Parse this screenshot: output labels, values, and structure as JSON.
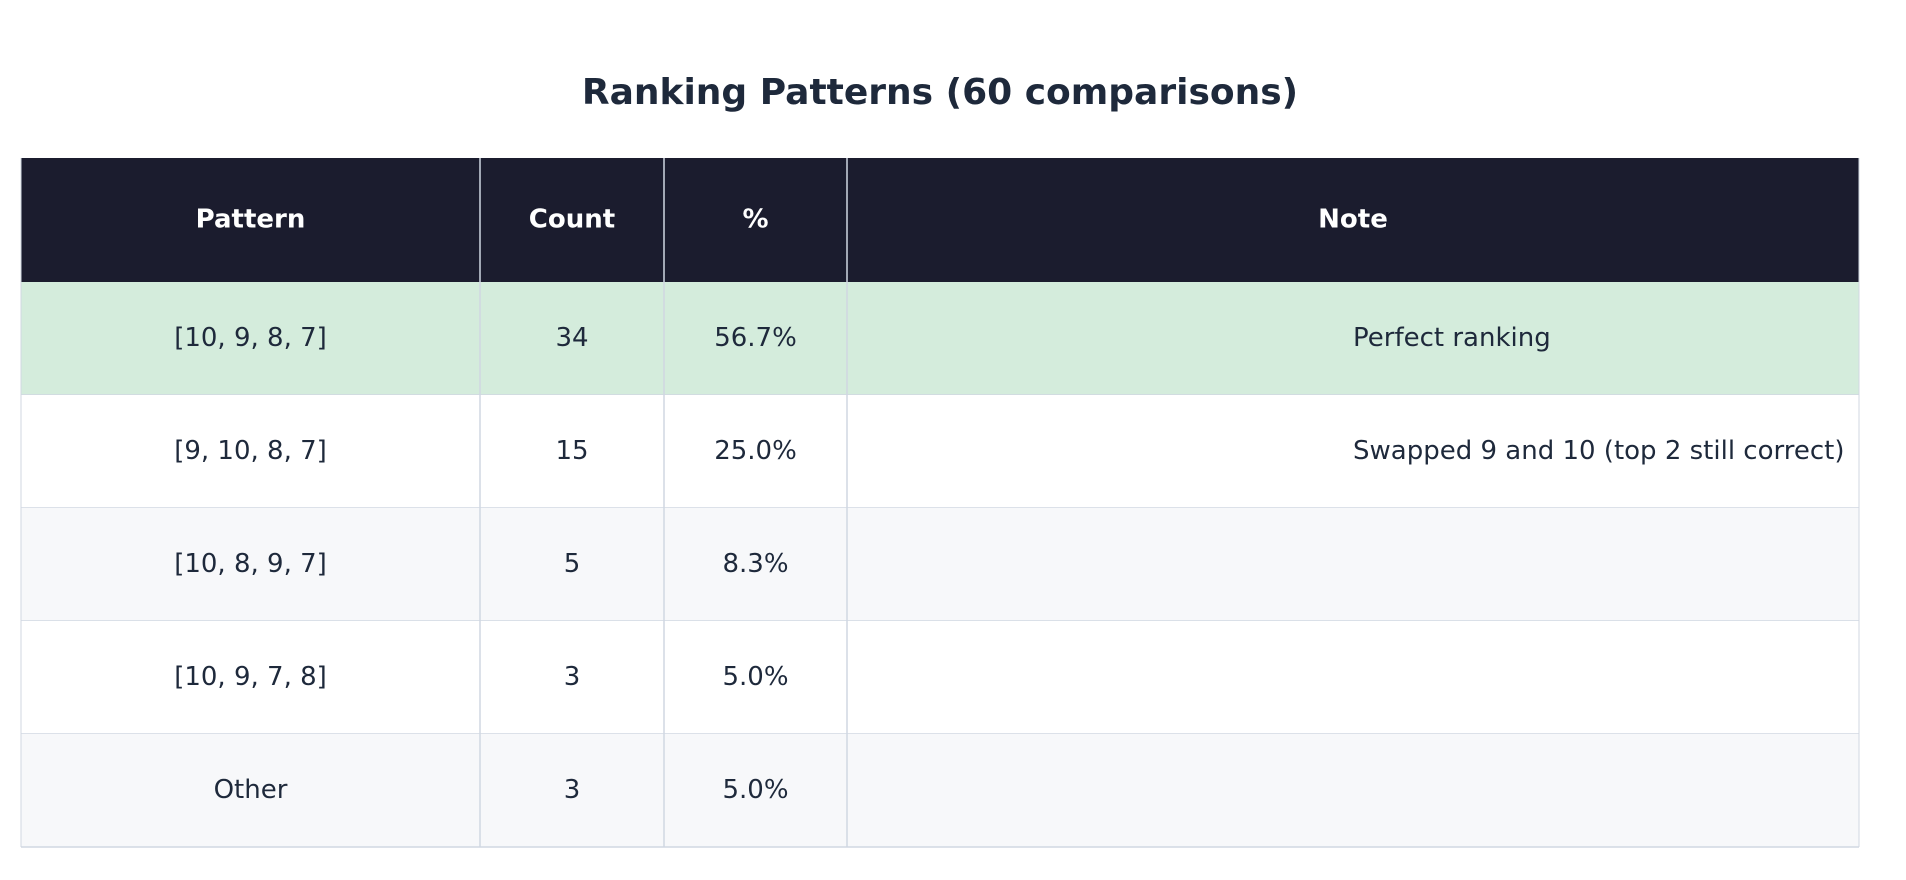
{
  "title": "Ranking Patterns (60 comparisons)",
  "table": {
    "header": [
      "Pattern",
      "Count",
      "%",
      "Note"
    ],
    "rows": [
      {
        "pattern": "[10, 9, 8, 7]",
        "count": 34,
        "percent": "56.7%",
        "note": "Perfect ranking"
      },
      {
        "pattern": "[9, 10, 8, 7]",
        "count": 15,
        "percent": "25.0%",
        "note": "Swapped 9 and 10 (top 2 still correct)"
      },
      {
        "pattern": "[10, 8, 9, 7]",
        "count": 5,
        "percent": "8.3%"
      },
      {
        "pattern": "[10, 9, 7, 8]",
        "count": 3,
        "percent": "5.0%"
      },
      {
        "pattern": "Other",
        "count": 3,
        "percent": "5.0%"
      }
    ]
  }
}
